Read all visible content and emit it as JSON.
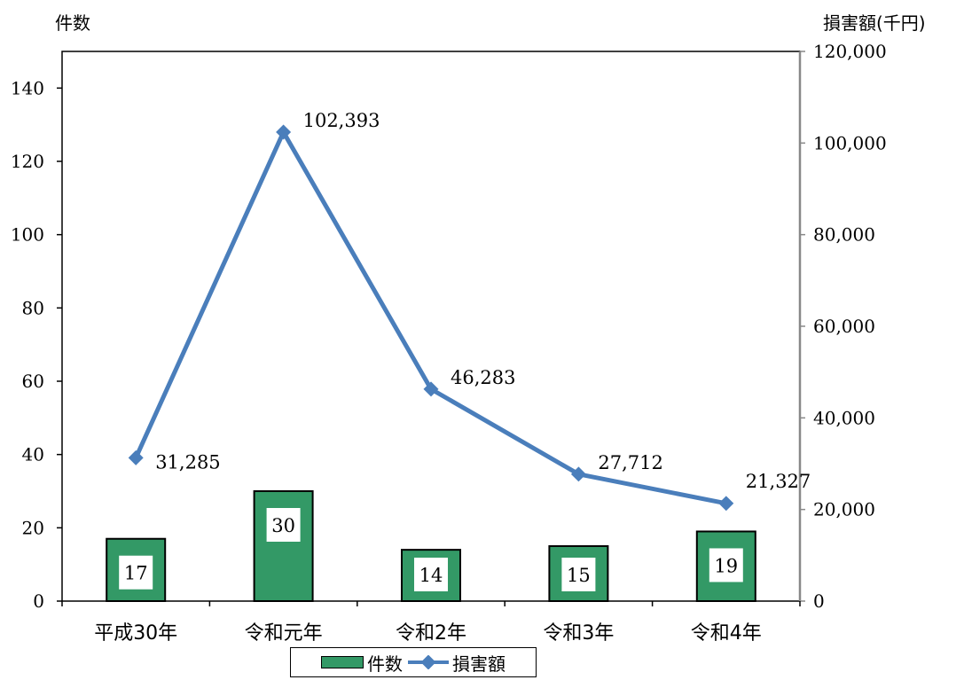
{
  "chart_data": {
    "type": "bar",
    "categories": [
      "平成30年",
      "令和元年",
      "令和2年",
      "令和3年",
      "令和4年"
    ],
    "series": [
      {
        "name": "件数",
        "type": "bar",
        "axis": "left",
        "values": [
          17,
          30,
          14,
          15,
          19
        ],
        "color": "#339966"
      },
      {
        "name": "損害額",
        "type": "line",
        "axis": "right",
        "values": [
          31285,
          102393,
          46283,
          27712,
          21327
        ],
        "color": "#4a7ebb"
      }
    ],
    "bar_labels": [
      "17",
      "30",
      "14",
      "15",
      "19"
    ],
    "line_labels": [
      "31,285",
      "102,393",
      "46,283",
      "27,712",
      "21,327"
    ],
    "ylabel_left": "件数",
    "ylabel_right": "損害額(千円)",
    "ylim_left": [
      0,
      150
    ],
    "yticks_left": [
      "0",
      "20",
      "40",
      "60",
      "80",
      "100",
      "120",
      "140"
    ],
    "ylim_right": [
      0,
      120000
    ],
    "yticks_right": [
      "0",
      "20,000",
      "40,000",
      "60,000",
      "80,000",
      "100,000",
      "120,000"
    ],
    "grid": false,
    "legend_position": "bottom"
  }
}
